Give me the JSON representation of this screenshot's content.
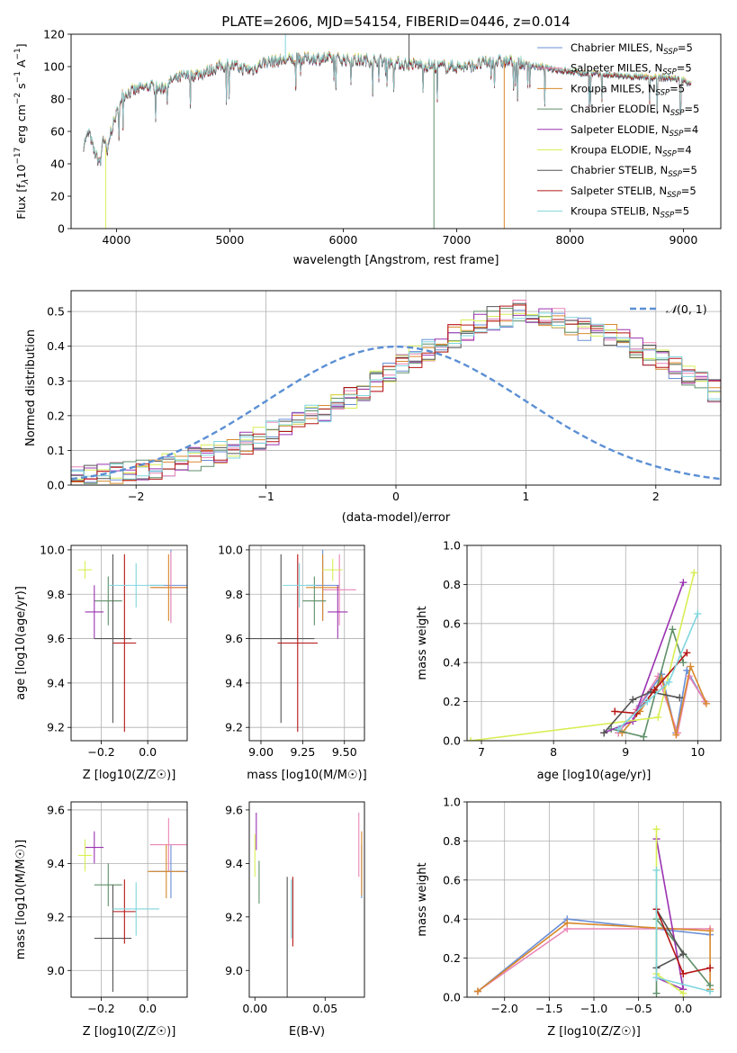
{
  "figure_title": "PLATE=2606, MJD=54154, FIBERID=0446, z=0.014",
  "series": [
    {
      "name": "Chabrier MILES",
      "nssp": "5",
      "color": "#6a8fd6"
    },
    {
      "name": "Salpeter MILES",
      "nssp": "5",
      "color": "#e985b6"
    },
    {
      "name": "Kroupa MILES",
      "nssp": "5",
      "color": "#d9892c"
    },
    {
      "name": "Chabrier ELODIE",
      "nssp": "5",
      "color": "#5f8f68"
    },
    {
      "name": "Salpeter ELODIE",
      "nssp": "4",
      "color": "#9b33b1"
    },
    {
      "name": "Kroupa ELODIE",
      "nssp": "4",
      "color": "#d9ee55"
    },
    {
      "name": "Chabrier STELIB",
      "nssp": "5",
      "color": "#555555"
    },
    {
      "name": "Salpeter STELIB",
      "nssp": "5",
      "color": "#b51414"
    },
    {
      "name": "Kroupa STELIB",
      "nssp": "5",
      "color": "#7fd6de"
    }
  ],
  "chart_data": [
    {
      "id": "spectrum",
      "type": "line",
      "xlabel": "wavelength [Angstrom, rest frame]",
      "ylabel": "Flux [f_λ 10^-17 erg cm^-2 s^-1 A^-1]",
      "xlim": [
        3600,
        9330
      ],
      "ylim": [
        0,
        120
      ],
      "xticks": [
        4000,
        5000,
        6000,
        7000,
        8000,
        9000
      ],
      "yticks": [
        0,
        20,
        40,
        60,
        80,
        100,
        120
      ],
      "legend": "top-right",
      "grid": false,
      "continuum": [
        [
          3710,
          52
        ],
        [
          3760,
          60
        ],
        [
          3800,
          48
        ],
        [
          3860,
          40
        ],
        [
          3880,
          58
        ],
        [
          3920,
          46
        ],
        [
          3950,
          60
        ],
        [
          3990,
          68
        ],
        [
          4050,
          82
        ],
        [
          4100,
          84
        ],
        [
          4200,
          86
        ],
        [
          4300,
          88
        ],
        [
          4400,
          86
        ],
        [
          4500,
          92
        ],
        [
          4600,
          94
        ],
        [
          4700,
          95
        ],
        [
          4800,
          97
        ],
        [
          4900,
          100
        ],
        [
          5000,
          101
        ],
        [
          5100,
          99
        ],
        [
          5200,
          98
        ],
        [
          5300,
          103
        ],
        [
          5500,
          104
        ],
        [
          5700,
          105
        ],
        [
          5900,
          105
        ],
        [
          6100,
          104
        ],
        [
          6300,
          104
        ],
        [
          6500,
          102
        ],
        [
          6700,
          101
        ],
        [
          6900,
          100
        ],
        [
          7100,
          100
        ],
        [
          7300,
          103
        ],
        [
          7500,
          103
        ],
        [
          7700,
          100
        ],
        [
          7900,
          98
        ],
        [
          8100,
          96
        ],
        [
          8300,
          95
        ],
        [
          8500,
          94
        ],
        [
          8700,
          93
        ],
        [
          8900,
          93
        ],
        [
          9070,
          90
        ]
      ]
    },
    {
      "id": "residuals",
      "type": "step-histogram",
      "xlabel": "(data-model)/error",
      "ylabel": "Normed distribution",
      "xlim": [
        -2.5,
        2.5
      ],
      "ylim": [
        0,
        0.56
      ],
      "xticks": [
        -2,
        -1,
        0,
        1,
        2
      ],
      "yticks": [
        0.0,
        0.1,
        0.2,
        0.3,
        0.4,
        0.5
      ],
      "grid": true,
      "legend_label": "N(0,1)",
      "legend": "top-right",
      "bin_width": 0.1,
      "reference": "standard normal pdf",
      "hist_profile": [
        0.02,
        0.025,
        0.03,
        0.035,
        0.04,
        0.045,
        0.05,
        0.06,
        0.065,
        0.075,
        0.085,
        0.095,
        0.11,
        0.12,
        0.135,
        0.15,
        0.165,
        0.18,
        0.2,
        0.215,
        0.235,
        0.255,
        0.275,
        0.3,
        0.32,
        0.345,
        0.37,
        0.39,
        0.41,
        0.43,
        0.45,
        0.47,
        0.48,
        0.49,
        0.5,
        0.5,
        0.49,
        0.48,
        0.465,
        0.45,
        0.44,
        0.43,
        0.415,
        0.4,
        0.38,
        0.36,
        0.34,
        0.32,
        0.295,
        0.27,
        0.25,
        0.23,
        0.21,
        0.19,
        0.17,
        0.15,
        0.13,
        0.12,
        0.105,
        0.095,
        0.085,
        0.075,
        0.065,
        0.06,
        0.055,
        0.05,
        0.045,
        0.04,
        0.035,
        0.03
      ],
      "hist_xstart": -2.5
    },
    {
      "id": "age_vs_Z",
      "type": "errorbar",
      "xlabel": "Z [log10(Z/Z☉)]",
      "ylabel": "age  [log10(age/yr)]",
      "xlim": [
        -0.33,
        0.17
      ],
      "ylim": [
        9.14,
        10.02
      ],
      "xticks": [
        -0.2,
        0.0
      ],
      "yticks": [
        9.2,
        9.4,
        9.6,
        9.8,
        10.0
      ],
      "grid": true,
      "points": [
        {
          "s": 0,
          "x": 0.1,
          "y": 9.84,
          "xerr": 0.09,
          "yerr": 0.16
        },
        {
          "s": 1,
          "x": 0.1,
          "y": 9.83,
          "xerr": 0.08,
          "yerr": 0.16
        },
        {
          "s": 2,
          "x": 0.09,
          "y": 9.83,
          "xerr": 0.08,
          "yerr": 0.15
        },
        {
          "s": 3,
          "x": -0.17,
          "y": 9.77,
          "xerr": 0.06,
          "yerr": 0.11
        },
        {
          "s": 4,
          "x": -0.23,
          "y": 9.72,
          "xerr": 0.04,
          "yerr": 0.12
        },
        {
          "s": 5,
          "x": -0.27,
          "y": 9.91,
          "xerr": 0.03,
          "yerr": 0.04
        },
        {
          "s": 6,
          "x": -0.15,
          "y": 9.6,
          "xerr": 0.08,
          "yerr": 0.38
        },
        {
          "s": 7,
          "x": -0.1,
          "y": 9.58,
          "xerr": 0.05,
          "yerr": 0.4
        },
        {
          "s": 8,
          "x": -0.05,
          "y": 9.84,
          "xerr": 0.12,
          "yerr": 0.1
        }
      ]
    },
    {
      "id": "age_vs_mass",
      "type": "errorbar",
      "xlabel": "mass [log10(M/M☉)]",
      "ylabel": "",
      "xlim": [
        8.93,
        9.62
      ],
      "ylim": [
        9.14,
        10.02
      ],
      "xticks": [
        9.0,
        9.25,
        9.5
      ],
      "yticks": [
        9.2,
        9.4,
        9.6,
        9.8,
        10.0
      ],
      "grid": true,
      "points": [
        {
          "s": 0,
          "x": 9.37,
          "y": 9.84,
          "xerr": 0.1,
          "yerr": 0.16
        },
        {
          "s": 1,
          "x": 9.47,
          "y": 9.82,
          "xerr": 0.1,
          "yerr": 0.16
        },
        {
          "s": 2,
          "x": 9.37,
          "y": 9.83,
          "xerr": 0.1,
          "yerr": 0.15
        },
        {
          "s": 3,
          "x": 9.32,
          "y": 9.77,
          "xerr": 0.07,
          "yerr": 0.11
        },
        {
          "s": 4,
          "x": 9.46,
          "y": 9.72,
          "xerr": 0.06,
          "yerr": 0.12
        },
        {
          "s": 5,
          "x": 9.43,
          "y": 9.91,
          "xerr": 0.06,
          "yerr": 0.05
        },
        {
          "s": 6,
          "x": 9.12,
          "y": 9.6,
          "xerr": 0.2,
          "yerr": 0.38
        },
        {
          "s": 7,
          "x": 9.22,
          "y": 9.58,
          "xerr": 0.12,
          "yerr": 0.4
        },
        {
          "s": 8,
          "x": 9.23,
          "y": 9.84,
          "xerr": 0.1,
          "yerr": 0.1
        }
      ]
    },
    {
      "id": "mass_weight_vs_age",
      "type": "line",
      "xlabel": "age  [log10(age/yr)]",
      "ylabel": "mass weight",
      "xlim": [
        6.8,
        10.32
      ],
      "ylim": [
        0,
        1.0
      ],
      "xticks": [
        7,
        8,
        9,
        10
      ],
      "yticks": [
        0.0,
        0.2,
        0.4,
        0.6,
        0.8,
        1.0
      ],
      "grid": true,
      "lines": [
        {
          "s": 0,
          "pts": [
            [
              8.9,
              0.04
            ],
            [
              9.2,
              0.18
            ],
            [
              9.5,
              0.34
            ],
            [
              9.7,
              0.04
            ],
            [
              9.85,
              0.36
            ],
            [
              10.1,
              0.2
            ]
          ]
        },
        {
          "s": 1,
          "pts": [
            [
              8.9,
              0.04
            ],
            [
              9.15,
              0.16
            ],
            [
              9.45,
              0.33
            ],
            [
              9.72,
              0.04
            ],
            [
              9.88,
              0.33
            ],
            [
              10.1,
              0.2
            ]
          ]
        },
        {
          "s": 2,
          "pts": [
            [
              8.95,
              0.04
            ],
            [
              9.2,
              0.15
            ],
            [
              9.5,
              0.32
            ],
            [
              9.7,
              0.03
            ],
            [
              9.9,
              0.38
            ],
            [
              10.12,
              0.19
            ]
          ]
        },
        {
          "s": 3,
          "pts": [
            [
              8.8,
              0.06
            ],
            [
              9.25,
              0.02
            ],
            [
              9.65,
              0.57
            ],
            [
              9.8,
              0.4
            ]
          ]
        },
        {
          "s": 4,
          "pts": [
            [
              8.7,
              0.04
            ],
            [
              9.1,
              0.1
            ],
            [
              9.8,
              0.81
            ]
          ]
        },
        {
          "s": 5,
          "pts": [
            [
              6.85,
              0.0
            ],
            [
              9.45,
              0.12
            ],
            [
              9.95,
              0.86
            ]
          ]
        },
        {
          "s": 6,
          "pts": [
            [
              8.7,
              0.04
            ],
            [
              9.1,
              0.21
            ],
            [
              9.35,
              0.25
            ],
            [
              9.75,
              0.22
            ]
          ]
        },
        {
          "s": 7,
          "pts": [
            [
              8.85,
              0.15
            ],
            [
              9.15,
              0.14
            ],
            [
              9.4,
              0.26
            ],
            [
              9.85,
              0.45
            ]
          ]
        },
        {
          "s": 8,
          "pts": [
            [
              8.9,
              0.06
            ],
            [
              9.3,
              0.2
            ],
            [
              9.6,
              0.3
            ],
            [
              10.0,
              0.65
            ]
          ]
        }
      ]
    },
    {
      "id": "mass_vs_Z",
      "type": "errorbar",
      "xlabel": "Z [log10(Z/Z☉)]",
      "ylabel": "mass [log10(M/M☉)]",
      "xlim": [
        -0.33,
        0.17
      ],
      "ylim": [
        8.9,
        9.63
      ],
      "xticks": [
        -0.2,
        0.0
      ],
      "yticks": [
        9.0,
        9.2,
        9.4,
        9.6
      ],
      "grid": true,
      "points": [
        {
          "s": 0,
          "x": 0.1,
          "y": 9.37,
          "xerr": 0.09,
          "yerr": 0.1
        },
        {
          "s": 1,
          "x": 0.09,
          "y": 9.47,
          "xerr": 0.08,
          "yerr": 0.1
        },
        {
          "s": 2,
          "x": 0.08,
          "y": 9.37,
          "xerr": 0.08,
          "yerr": 0.1
        },
        {
          "s": 3,
          "x": -0.17,
          "y": 9.32,
          "xerr": 0.06,
          "yerr": 0.08
        },
        {
          "s": 4,
          "x": -0.23,
          "y": 9.46,
          "xerr": 0.04,
          "yerr": 0.06
        },
        {
          "s": 5,
          "x": -0.27,
          "y": 9.43,
          "xerr": 0.03,
          "yerr": 0.06
        },
        {
          "s": 6,
          "x": -0.15,
          "y": 9.12,
          "xerr": 0.08,
          "yerr": 0.2
        },
        {
          "s": 7,
          "x": -0.1,
          "y": 9.22,
          "xerr": 0.05,
          "yerr": 0.12
        },
        {
          "s": 8,
          "x": -0.05,
          "y": 9.23,
          "xerr": 0.1,
          "yerr": 0.1
        }
      ]
    },
    {
      "id": "mass_vs_ebv",
      "type": "errorbar",
      "xlabel": "E(B-V)",
      "ylabel": "",
      "xlim": [
        -0.004,
        0.078
      ],
      "ylim": [
        8.9,
        9.63
      ],
      "xticks": [
        0.0,
        0.05
      ],
      "yticks": [
        9.0,
        9.2,
        9.4,
        9.6
      ],
      "grid": false,
      "points": [
        {
          "s": 0,
          "x": 0.076,
          "y": 9.37,
          "xerr": 0,
          "yerr": 0.1
        },
        {
          "s": 1,
          "x": 0.074,
          "y": 9.47,
          "xerr": 0,
          "yerr": 0.12
        },
        {
          "s": 2,
          "x": 0.076,
          "y": 9.4,
          "xerr": 0,
          "yerr": 0.12
        },
        {
          "s": 3,
          "x": 0.003,
          "y": 9.33,
          "xerr": 0,
          "yerr": 0.08
        },
        {
          "s": 4,
          "x": 0.001,
          "y": 9.52,
          "xerr": 0,
          "yerr": 0.07
        },
        {
          "s": 5,
          "x": 0.0,
          "y": 9.43,
          "xerr": 0,
          "yerr": 0.08
        },
        {
          "s": 6,
          "x": 0.023,
          "y": 9.12,
          "xerr": 0,
          "yerr": 0.23
        },
        {
          "s": 7,
          "x": 0.027,
          "y": 9.22,
          "xerr": 0,
          "yerr": 0.13
        },
        {
          "s": 8,
          "x": 0.026,
          "y": 9.23,
          "xerr": 0,
          "yerr": 0.11
        }
      ]
    },
    {
      "id": "mass_weight_vs_Z",
      "type": "line",
      "xlabel": "Z [log10(Z/Z☉)]",
      "ylabel": "mass weight",
      "xlim": [
        -2.42,
        0.42
      ],
      "ylim": [
        0,
        1.0
      ],
      "xticks": [
        -2.0,
        -1.5,
        -1.0,
        -0.5,
        0.0
      ],
      "yticks": [
        0.0,
        0.2,
        0.4,
        0.6,
        0.8,
        1.0
      ],
      "grid": true,
      "lines": [
        {
          "s": 0,
          "pts": [
            [
              -2.3,
              0.03
            ],
            [
              -1.3,
              0.4
            ],
            [
              0.3,
              0.32
            ]
          ]
        },
        {
          "s": 1,
          "pts": [
            [
              -2.3,
              0.03
            ],
            [
              -1.3,
              0.35
            ],
            [
              0.3,
              0.35
            ]
          ]
        },
        {
          "s": 2,
          "pts": [
            [
              -2.3,
              0.03
            ],
            [
              -1.3,
              0.38
            ],
            [
              0.3,
              0.34
            ],
            [
              0.3,
              0.04
            ]
          ]
        },
        {
          "s": 3,
          "pts": [
            [
              -0.3,
              0.02
            ],
            [
              -0.3,
              0.4
            ],
            [
              0.3,
              0.06
            ]
          ]
        },
        {
          "s": 4,
          "pts": [
            [
              -0.3,
              0.81
            ],
            [
              0.0,
              0.04
            ],
            [
              -0.3,
              0.1
            ]
          ]
        },
        {
          "s": 5,
          "pts": [
            [
              -0.3,
              0.86
            ],
            [
              -0.3,
              0.12
            ],
            [
              0.0,
              0.02
            ]
          ]
        },
        {
          "s": 6,
          "pts": [
            [
              -0.3,
              0.45
            ],
            [
              0.0,
              0.22
            ],
            [
              -0.3,
              0.15
            ]
          ]
        },
        {
          "s": 7,
          "pts": [
            [
              -0.3,
              0.45
            ],
            [
              0.0,
              0.12
            ],
            [
              0.3,
              0.15
            ]
          ]
        },
        {
          "s": 8,
          "pts": [
            [
              -0.3,
              0.65
            ],
            [
              -0.3,
              0.1
            ],
            [
              0.3,
              0.03
            ]
          ]
        }
      ]
    }
  ]
}
